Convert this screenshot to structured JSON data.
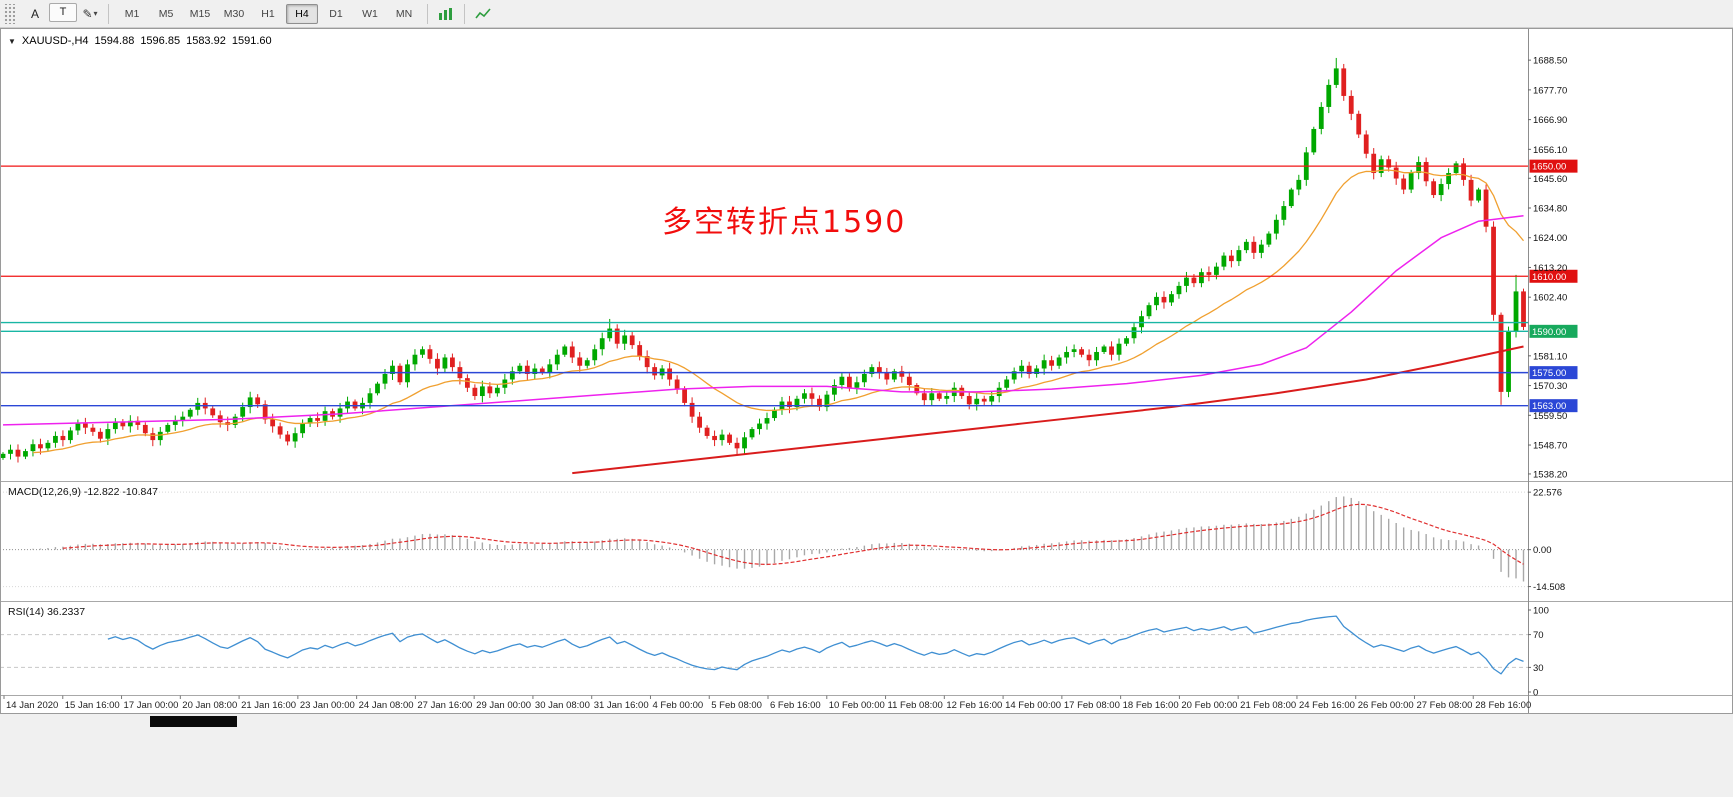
{
  "window": {
    "bg": "#f0f0f0"
  },
  "toolbar": {
    "tools": [
      {
        "label": "A"
      },
      {
        "label": "T"
      }
    ],
    "timeframes": [
      {
        "label": "M1",
        "active": false
      },
      {
        "label": "M5",
        "active": false
      },
      {
        "label": "M15",
        "active": false
      },
      {
        "label": "M30",
        "active": false
      },
      {
        "label": "H1",
        "active": false
      },
      {
        "label": "H4",
        "active": true
      },
      {
        "label": "D1",
        "active": false
      },
      {
        "label": "W1",
        "active": false
      },
      {
        "label": "MN",
        "active": false
      }
    ]
  },
  "chart": {
    "header": {
      "symbol": "XAUUSD-,H4",
      "open": "1594.88",
      "high": "1596.85",
      "low": "1583.92",
      "close": "1591.60"
    },
    "annotation": {
      "text": "多空转折点1590",
      "color": "#f20d0d"
    },
    "colors": {
      "up": "#00a800",
      "down": "#e02020"
    },
    "price_axis": {
      "top_price": 1694,
      "bottom_price": 1536,
      "labels": [
        "1688.50",
        "1677.70",
        "1666.90",
        "1656.10",
        "1645.60",
        "1634.80",
        "1624.00",
        "1613.20",
        "1602.40",
        "1581.10",
        "1570.30",
        "1559.50",
        "1548.70",
        "1538.20"
      ]
    },
    "levels": [
      {
        "price": 1650.0,
        "color": "#f01414",
        "width": 1.2,
        "label": "1650.00",
        "tag_color": "#e01010"
      },
      {
        "price": 1610.0,
        "color": "#f01414",
        "width": 1.2,
        "label": "1610.00",
        "tag_color": "#e01010"
      },
      {
        "price": 1593.2,
        "color": "#19b6a4",
        "width": 1.4
      },
      {
        "price": 1590.0,
        "color": "#19b6a4",
        "width": 1.4,
        "label": "1590.00",
        "tag_color": "#17a95d"
      },
      {
        "price": 1575.0,
        "color": "#2b47d6",
        "width": 1.4,
        "label": "1575.00",
        "tag_color": "#2b47d6"
      },
      {
        "price": 1563.0,
        "color": "#2b47d6",
        "width": 1.4,
        "label": "1563.00",
        "tag_color": "#2b47d6"
      }
    ],
    "candles": {
      "first_open": 1544.0,
      "closes": [
        1545.5,
        1547.0,
        1544.5,
        1546.5,
        1549.0,
        1547.5,
        1549.5,
        1552.0,
        1550.5,
        1554.0,
        1556.5,
        1555.0,
        1553.5,
        1551.0,
        1554.5,
        1557.0,
        1555.5,
        1557.5,
        1556.0,
        1553.0,
        1550.5,
        1553.5,
        1556.0,
        1557.5,
        1559.0,
        1561.5,
        1564.0,
        1562.0,
        1559.5,
        1557.0,
        1556.0,
        1559.0,
        1562.5,
        1566.0,
        1563.5,
        1558.0,
        1555.5,
        1552.5,
        1550.0,
        1553.0,
        1556.5,
        1558.5,
        1557.5,
        1561.0,
        1559.0,
        1562.0,
        1564.5,
        1562.0,
        1564.0,
        1567.5,
        1571.0,
        1574.5,
        1577.5,
        1571.5,
        1578.0,
        1581.5,
        1583.5,
        1580.0,
        1576.5,
        1580.5,
        1577.0,
        1573.0,
        1569.5,
        1566.5,
        1570.0,
        1567.5,
        1569.5,
        1572.5,
        1575.5,
        1577.5,
        1574.5,
        1576.5,
        1575.0,
        1578.0,
        1581.5,
        1584.5,
        1580.5,
        1577.5,
        1579.5,
        1583.5,
        1587.5,
        1591.0,
        1585.5,
        1588.5,
        1585.0,
        1581.0,
        1577.0,
        1574.0,
        1576.5,
        1572.5,
        1569.0,
        1564.0,
        1559.0,
        1555.0,
        1552.0,
        1550.5,
        1552.5,
        1549.5,
        1547.5,
        1551.5,
        1554.5,
        1556.5,
        1558.5,
        1561.5,
        1564.5,
        1562.5,
        1565.5,
        1567.5,
        1565.5,
        1562.5,
        1567.0,
        1570.5,
        1573.5,
        1569.5,
        1571.5,
        1574.5,
        1577.0,
        1575.0,
        1572.5,
        1575.5,
        1573.5,
        1570.5,
        1567.5,
        1565.0,
        1567.5,
        1565.5,
        1566.5,
        1569.5,
        1566.5,
        1563.5,
        1565.5,
        1564.5,
        1566.5,
        1569.5,
        1572.5,
        1575.5,
        1577.5,
        1574.5,
        1576.5,
        1579.5,
        1577.5,
        1580.5,
        1582.5,
        1583.5,
        1581.5,
        1579.5,
        1582.5,
        1584.5,
        1581.5,
        1585.5,
        1587.5,
        1591.5,
        1595.5,
        1599.5,
        1602.5,
        1600.5,
        1603.5,
        1606.5,
        1609.5,
        1607.5,
        1611.5,
        1610.5,
        1613.5,
        1617.5,
        1615.5,
        1619.5,
        1622.5,
        1618.5,
        1621.5,
        1625.5,
        1630.5,
        1635.5,
        1641.5,
        1645.0,
        1655.0,
        1663.5,
        1671.5,
        1679.5,
        1685.5,
        1675.5,
        1669.0,
        1661.5,
        1654.5,
        1647.5,
        1652.5,
        1649.5,
        1645.5,
        1641.5,
        1647.5,
        1651.5,
        1644.5,
        1639.5,
        1643.5,
        1647.5,
        1651.0,
        1645.0,
        1637.5,
        1641.5,
        1628.0,
        1596.0,
        1568.0,
        1590.0,
        1604.5,
        1591.6
      ],
      "high_overrides": {
        "81": 1594.5,
        "178": 1689.3,
        "202": 1610.5
      },
      "low_overrides": {
        "200": 1563.3
      }
    },
    "ma": {
      "orange": {
        "period": 20,
        "color": "#f0a030"
      },
      "magenta": {
        "color": "#ee22ee",
        "anchors": [
          [
            0,
            1556
          ],
          [
            15,
            1557
          ],
          [
            30,
            1558
          ],
          [
            45,
            1560
          ],
          [
            60,
            1563
          ],
          [
            75,
            1566
          ],
          [
            90,
            1569
          ],
          [
            100,
            1570
          ],
          [
            110,
            1570
          ],
          [
            120,
            1568
          ],
          [
            130,
            1568
          ],
          [
            140,
            1569
          ],
          [
            150,
            1571
          ],
          [
            160,
            1574
          ],
          [
            168,
            1578
          ],
          [
            174,
            1584
          ],
          [
            180,
            1597
          ],
          [
            186,
            1612
          ],
          [
            192,
            1624
          ],
          [
            197,
            1630
          ],
          [
            203,
            1632
          ]
        ]
      },
      "red": {
        "color": "#d91c1c",
        "anchors": [
          [
            76,
            1538.5
          ],
          [
            96,
            1544.5
          ],
          [
            116,
            1550.5
          ],
          [
            136,
            1556.5
          ],
          [
            156,
            1562.5
          ],
          [
            170,
            1567.5
          ],
          [
            182,
            1572.5
          ],
          [
            192,
            1578
          ],
          [
            203,
            1584.5
          ]
        ]
      }
    }
  },
  "macd": {
    "title": "MACD(12,26,9) -12.822 -10.847",
    "axis": [
      "22.576",
      "0.00",
      "-14.508"
    ],
    "signal_color": "#e03030",
    "hist_color": "#a8a8a8"
  },
  "rsi": {
    "title": "RSI(14) 36.2337",
    "axis": [
      "100",
      "70",
      "30",
      "0"
    ],
    "line_color": "#3f8fd2",
    "levels": [
      70,
      30
    ]
  },
  "time_axis": {
    "labels": [
      "14 Jan 2020",
      "15 Jan 16:00",
      "17 Jan 00:00",
      "20 Jan 08:00",
      "21 Jan 16:00",
      "23 Jan 00:00",
      "24 Jan 08:00",
      "27 Jan 16:00",
      "29 Jan 00:00",
      "30 Jan 08:00",
      "31 Jan 16:00",
      "4 Feb 00:00",
      "5 Feb 08:00",
      "6 Feb 16:00",
      "10 Feb 00:00",
      "11 Feb 08:00",
      "12 Feb 16:00",
      "14 Feb 00:00",
      "17 Feb 08:00",
      "18 Feb 16:00",
      "20 Feb 00:00",
      "21 Feb 08:00",
      "24 Feb 16:00",
      "26 Feb 00:00",
      "27 Feb 08:00",
      "28 Feb 16:00"
    ]
  }
}
